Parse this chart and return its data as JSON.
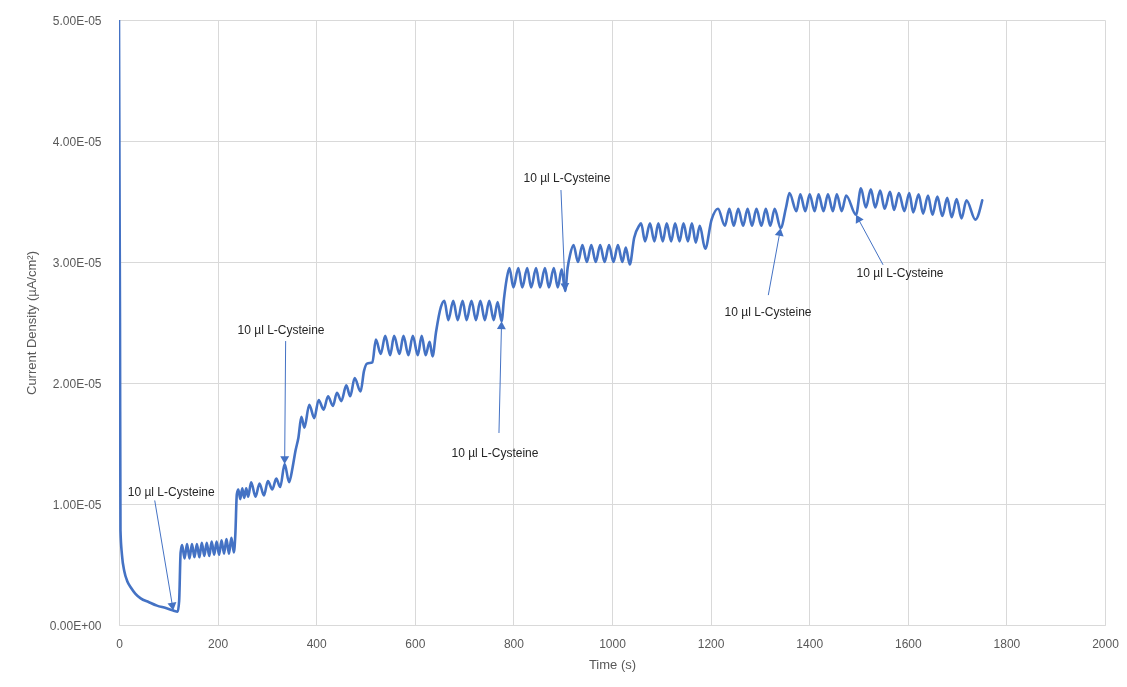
{
  "chart_data": {
    "type": "line",
    "xlabel": "Time (s)",
    "ylabel": "Current Density (µA/cm²)",
    "xlim": [
      0,
      2000
    ],
    "xticks": [
      0,
      200,
      400,
      600,
      800,
      1000,
      1200,
      1400,
      1600,
      1800,
      2000
    ],
    "ylim": [
      0,
      5e-05
    ],
    "yticks": [
      {
        "value": 0,
        "label": "0.00E+00"
      },
      {
        "value": 1e-05,
        "label": "1.00E-05"
      },
      {
        "value": 2e-05,
        "label": "2.00E-05"
      },
      {
        "value": 3e-05,
        "label": "3.00E-05"
      },
      {
        "value": 4e-05,
        "label": "4.00E-05"
      },
      {
        "value": 5e-05,
        "label": "5.00E-05"
      }
    ],
    "grid": true,
    "x": [
      0,
      2,
      3,
      6,
      11,
      17,
      24,
      33,
      44,
      60,
      77,
      95,
      110,
      119,
      122,
      125,
      128,
      133,
      138,
      143,
      148,
      153,
      158,
      163,
      168,
      173,
      178,
      183,
      188,
      193,
      198,
      203,
      208,
      213,
      218,
      223,
      228,
      233,
      236,
      239,
      242,
      246,
      250,
      254,
      258,
      262,
      268,
      277,
      285,
      294,
      302,
      311,
      319,
      327,
      336,
      345,
      352,
      358,
      364,
      370,
      376,
      386,
      396,
      405,
      415,
      424,
      434,
      442,
      451,
      461,
      469,
      478,
      490,
      497,
      503,
      514,
      521,
      531,
      540,
      550,
      558,
      569,
      577,
      587,
      596,
      606,
      614,
      622,
      630,
      636,
      643,
      653,
      660,
      668,
      678,
      687,
      697,
      705,
      715,
      724,
      733,
      742,
      751,
      760,
      768,
      776,
      781,
      786,
      792,
      800,
      810,
      818,
      828,
      836,
      846,
      854,
      864,
      872,
      882,
      890,
      898,
      905,
      910,
      915,
      922,
      931,
      940,
      949,
      958,
      967,
      976,
      985,
      994,
      1003,
      1012,
      1021,
      1028,
      1036,
      1045,
      1055,
      1059,
      1067,
      1077,
      1086,
      1094,
      1103,
      1111,
      1120,
      1128,
      1137,
      1145,
      1154,
      1162,
      1170,
      1178,
      1189,
      1202,
      1215,
      1229,
      1238,
      1247,
      1256,
      1266,
      1275,
      1284,
      1293,
      1303,
      1312,
      1321,
      1330,
      1342,
      1353,
      1360,
      1374,
      1382,
      1392,
      1401,
      1411,
      1419,
      1429,
      1438,
      1448,
      1456,
      1466,
      1475,
      1495,
      1505,
      1515,
      1525,
      1534,
      1544,
      1553,
      1564,
      1572,
      1582,
      1593,
      1603,
      1611,
      1622,
      1631,
      1641,
      1650,
      1660,
      1670,
      1680,
      1689,
      1699,
      1709,
      1719,
      1737,
      1751
    ],
    "series": [
      {
        "color": "#4472c4",
        "values": [
          5e-05,
          2.5e-05,
          7.8e-06,
          5.8e-06,
          4.4e-06,
          3.6e-06,
          3.1e-06,
          2.6e-06,
          2.2e-06,
          1.9e-06,
          1.6e-06,
          1.4e-06,
          1.2e-06,
          1.1e-06,
          2e-06,
          6e-06,
          6.6e-06,
          5.5e-06,
          6.7e-06,
          5.5e-06,
          6.7e-06,
          5.6e-06,
          6.7e-06,
          5.6e-06,
          6.8e-06,
          5.7e-06,
          6.8e-06,
          5.7e-06,
          6.9e-06,
          5.8e-06,
          6.9e-06,
          5.8e-06,
          7e-06,
          5.9e-06,
          7.1e-06,
          5.9e-06,
          7.2e-06,
          6e-06,
          7.5e-06,
          1.08e-05,
          1.12e-05,
          1.04e-05,
          1.13e-05,
          1.05e-05,
          1.13e-05,
          1.06e-05,
          1.18e-05,
          1.06e-05,
          1.17e-05,
          1.07e-05,
          1.19e-05,
          1.12e-05,
          1.21e-05,
          1.14e-05,
          1.33e-05,
          1.18e-05,
          1.3e-05,
          1.44e-05,
          1.55e-05,
          1.72e-05,
          1.63e-05,
          1.82e-05,
          1.71e-05,
          1.86e-05,
          1.78e-05,
          1.89e-05,
          1.81e-05,
          1.92e-05,
          1.85e-05,
          1.98e-05,
          1.89e-05,
          2.04e-05,
          1.93e-05,
          2.1e-05,
          2.16e-05,
          2.17e-05,
          2.36e-05,
          2.24e-05,
          2.39e-05,
          2.23e-05,
          2.39e-05,
          2.24e-05,
          2.39e-05,
          2.23e-05,
          2.39e-05,
          2.23e-05,
          2.39e-05,
          2.23e-05,
          2.34e-05,
          2.22e-05,
          2.42e-05,
          2.63e-05,
          2.68e-05,
          2.52e-05,
          2.68e-05,
          2.52e-05,
          2.68e-05,
          2.52e-05,
          2.68e-05,
          2.52e-05,
          2.68e-05,
          2.52e-05,
          2.68e-05,
          2.52e-05,
          2.67e-05,
          2.51e-05,
          2.7e-05,
          2.85e-05,
          2.95e-05,
          2.79e-05,
          2.95e-05,
          2.79e-05,
          2.95e-05,
          2.79e-05,
          2.95e-05,
          2.79e-05,
          2.95e-05,
          2.79e-05,
          2.95e-05,
          2.79e-05,
          2.94e-05,
          2.76e-05,
          2.95e-05,
          3.06e-05,
          3.14e-05,
          3e-05,
          3.14e-05,
          3e-05,
          3.14e-05,
          3e-05,
          3.14e-05,
          3e-05,
          3.14e-05,
          3e-05,
          3.14e-05,
          3e-05,
          3.12e-05,
          2.98e-05,
          3.2e-05,
          3.3e-05,
          3.32e-05,
          3.17e-05,
          3.32e-05,
          3.17e-05,
          3.32e-05,
          3.17e-05,
          3.32e-05,
          3.17e-05,
          3.32e-05,
          3.17e-05,
          3.32e-05,
          3.17e-05,
          3.32e-05,
          3.16e-05,
          3.3e-05,
          3.11e-05,
          3.35e-05,
          3.44e-05,
          3.3e-05,
          3.44e-05,
          3.3e-05,
          3.44e-05,
          3.3e-05,
          3.44e-05,
          3.3e-05,
          3.44e-05,
          3.3e-05,
          3.44e-05,
          3.3e-05,
          3.44e-05,
          3.28e-05,
          3.45e-05,
          3.57e-05,
          3.42e-05,
          3.56e-05,
          3.42e-05,
          3.56e-05,
          3.42e-05,
          3.56e-05,
          3.42e-05,
          3.56e-05,
          3.42e-05,
          3.56e-05,
          3.42e-05,
          3.55e-05,
          3.39e-05,
          3.61e-05,
          3.45e-05,
          3.6e-05,
          3.45e-05,
          3.59e-05,
          3.44e-05,
          3.58e-05,
          3.43e-05,
          3.57e-05,
          3.42e-05,
          3.57e-05,
          3.41e-05,
          3.56e-05,
          3.4e-05,
          3.55e-05,
          3.39e-05,
          3.54e-05,
          3.38e-05,
          3.53e-05,
          3.37e-05,
          3.52e-05,
          3.36e-05,
          3.51e-05,
          3.35e-05,
          3.51e-05
        ]
      }
    ],
    "annotations": [
      {
        "text": "10 µl L-Cysteine",
        "x": 110,
        "y": 1.2e-06
      },
      {
        "text": "10 µl L-Cysteine",
        "x": 336,
        "y": 1.33e-05
      },
      {
        "text": "10 µl L-Cysteine",
        "x": 776,
        "y": 2.51e-05
      },
      {
        "text": "10 µl L-Cysteine",
        "x": 905,
        "y": 2.76e-05
      },
      {
        "text": "10 µl L-Cysteine",
        "x": 1342,
        "y": 3.28e-05
      },
      {
        "text": "10 µl L-Cysteine",
        "x": 1495,
        "y": 3.39e-05
      }
    ]
  }
}
